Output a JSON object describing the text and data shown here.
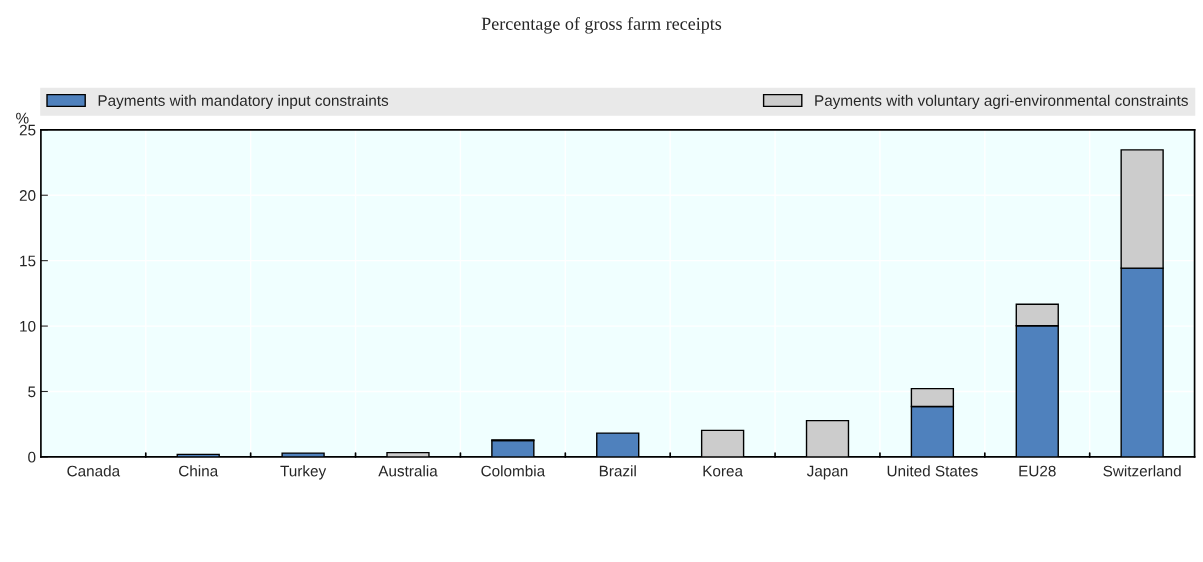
{
  "chart_data": {
    "type": "bar",
    "title": "Percentage of gross farm receipts",
    "ylabel": "%",
    "categories": [
      "Canada",
      "China",
      "Turkey",
      "Australia",
      "Colombia",
      "Brazil",
      "Korea",
      "Japan",
      "United States",
      "EU28",
      "Switzerland"
    ],
    "stacked": true,
    "series": [
      {
        "name": "Payments with mandatory input constraints",
        "color": "#4f81bd",
        "values": [
          0.02,
          0.19,
          0.29,
          0,
          1.25,
          1.82,
          0,
          null,
          3.85,
          10.02,
          14.43
        ]
      },
      {
        "name": "Payments with voluntary agri-environmental constraints",
        "color": "#cccccc",
        "values": [
          0,
          0,
          0,
          0.33,
          0.04,
          0,
          2.03,
          2.77,
          1.37,
          1.65,
          9.04
        ]
      }
    ],
    "ylim": [
      0,
      25
    ],
    "yticks": [
      0,
      5,
      10,
      15,
      20,
      25
    ],
    "grid": true,
    "legend": "top"
  }
}
